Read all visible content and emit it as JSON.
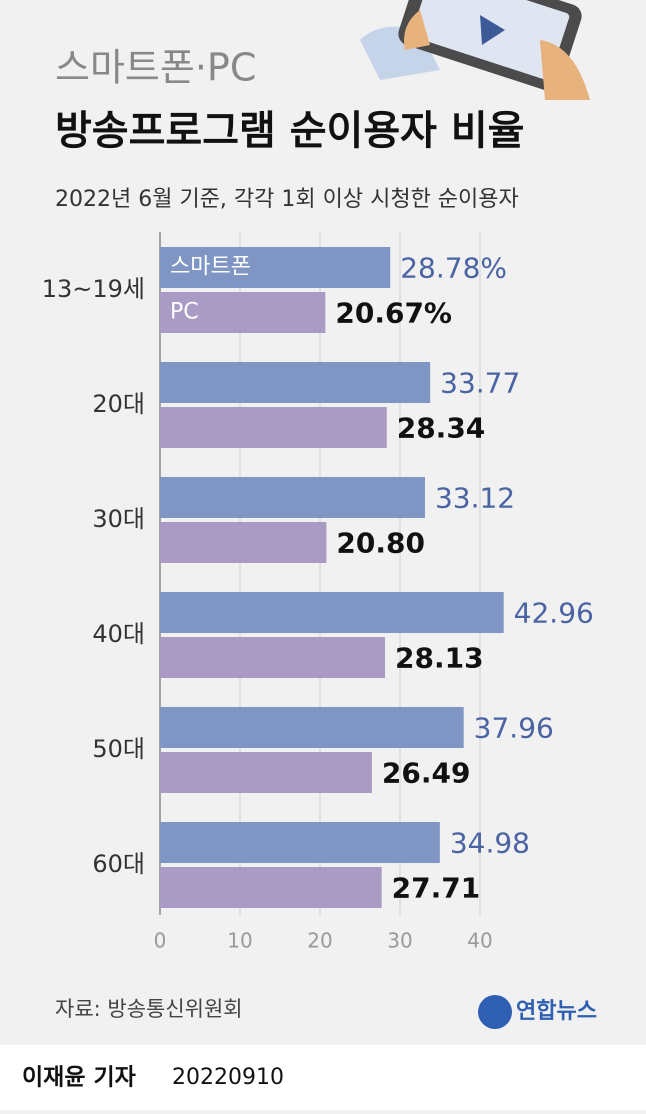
{
  "chart_data": {
    "type": "barh",
    "pretitle": "스마트폰·PC",
    "title": "방송프로그램 순이용자 비율",
    "subtitle": "2022년 6월 기준, 각각 1회 이상 시청한 순이용자",
    "categories": [
      "13~19세",
      "20대",
      "30대",
      "40대",
      "50대",
      "60대"
    ],
    "series": [
      {
        "name": "스마트폰",
        "color": "#7f96c4",
        "label_color": "#4a64a3",
        "values": [
          28.78,
          33.77,
          33.12,
          42.96,
          37.96,
          34.98
        ],
        "value_labels": [
          "28.78%",
          "33.77",
          "33.12",
          "42.96",
          "37.96",
          "34.98"
        ]
      },
      {
        "name": "PC",
        "color": "#a99bc4",
        "label_color": "#111111",
        "values": [
          20.67,
          28.34,
          20.8,
          28.13,
          26.49,
          27.71
        ],
        "value_labels": [
          "20.67%",
          "28.34",
          "20.80",
          "28.13",
          "26.49",
          "27.71"
        ]
      }
    ],
    "xlim": [
      0,
      40
    ],
    "xticks": [
      0,
      10,
      20,
      30,
      40
    ],
    "grid": true,
    "source": "자료: 방송통신위원회"
  },
  "footer": {
    "logo": "연합뉴스",
    "byline": "이재윤 기자",
    "date": "20220910"
  }
}
